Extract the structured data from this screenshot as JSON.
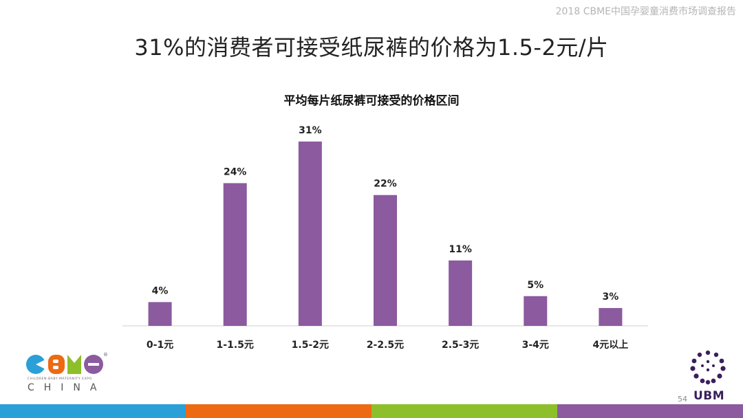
{
  "header": {
    "caption": "2018 CBME中国孕婴童消费市场调查报告"
  },
  "slide": {
    "title": "31%的消费者可接受纸尿裤的价格为1.5-2元/片"
  },
  "chart_data": {
    "type": "bar",
    "title": "平均每片纸尿裤可接受的价格区间",
    "categories": [
      "0-1元",
      "1-1.5元",
      "1.5-2元",
      "2-2.5元",
      "2.5-3元",
      "3-4元",
      "4元以上"
    ],
    "values": [
      4,
      24,
      31,
      22,
      11,
      5,
      3
    ],
    "value_labels": [
      "4%",
      "24%",
      "31%",
      "22%",
      "11%",
      "5%",
      "3%"
    ],
    "unit": "%",
    "ylim": [
      0,
      35
    ],
    "grid": false,
    "legend": "none",
    "bar_color": "#8b5a9f"
  },
  "footer": {
    "logo_left": {
      "brand": "CBME",
      "subtitle": "CHILDREN·BABY·MATERNITY EXPO",
      "country": "CHINA"
    },
    "logo_right": {
      "brand": "UBM"
    },
    "page_number": "54",
    "strip_colors": [
      "#2a9fd8",
      "#ee6a12",
      "#8cbf2a",
      "#8b5a9f"
    ]
  }
}
